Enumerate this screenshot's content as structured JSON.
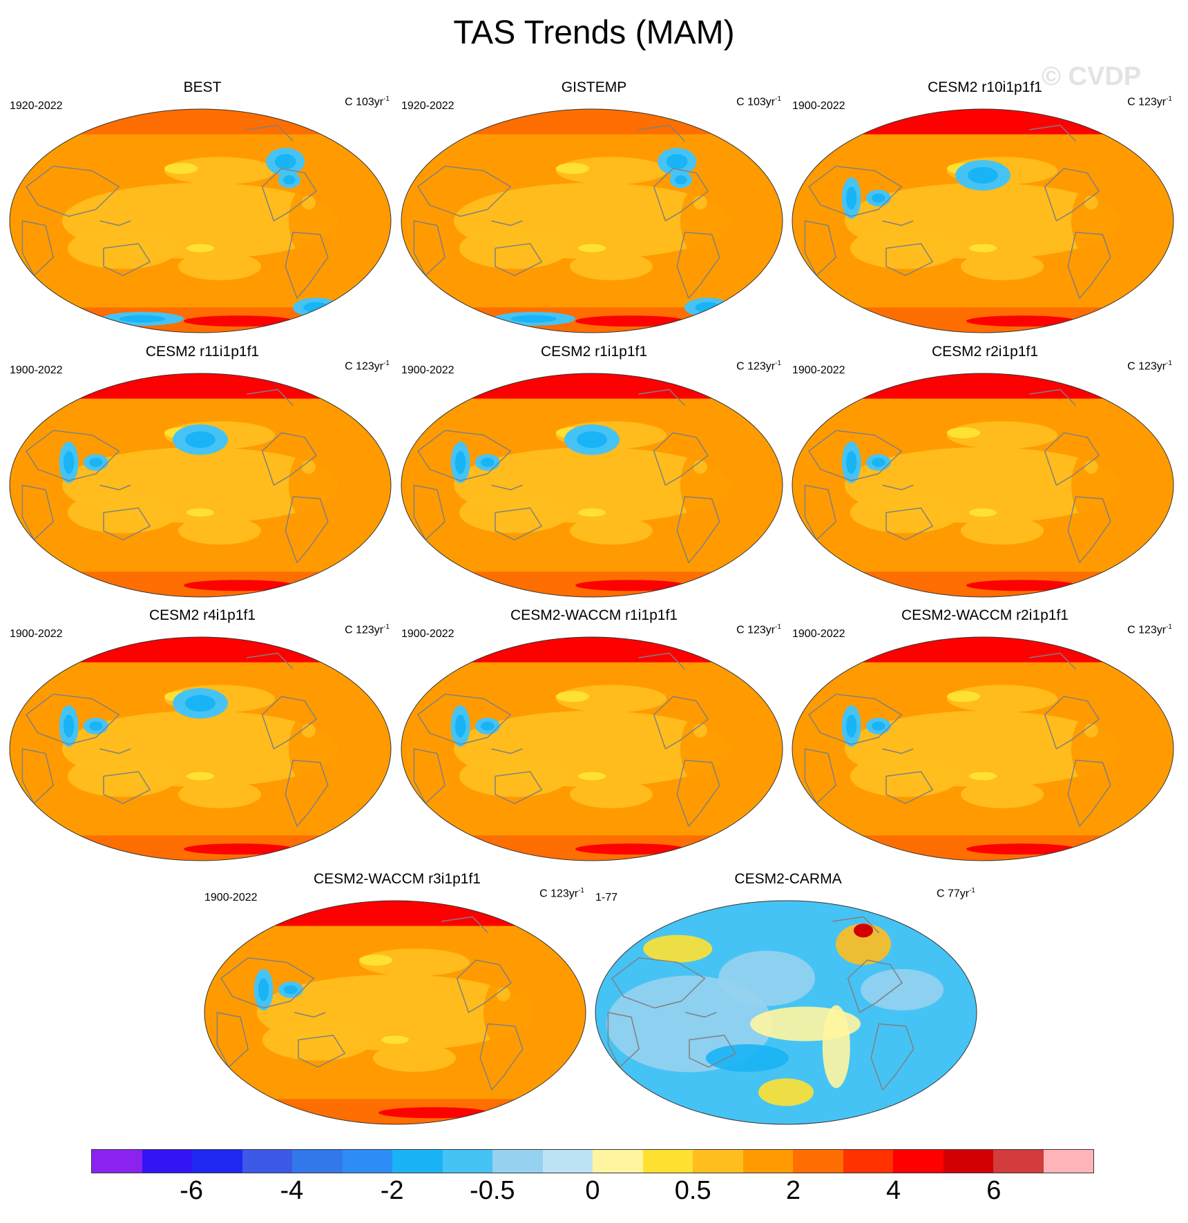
{
  "figure": {
    "title": "TAS Trends (MAM)",
    "watermark": "© CVDP"
  },
  "panels": [
    {
      "title": "BEST",
      "period": "1920-2022",
      "units": "C 103yr",
      "units_exp": "-1",
      "pattern": "obs",
      "cold_spots": [
        "north-atlantic",
        "antarctic"
      ]
    },
    {
      "title": "GISTEMP",
      "period": "1920-2022",
      "units": "C 103yr",
      "units_exp": "-1",
      "pattern": "obs",
      "cold_spots": [
        "north-atlantic",
        "antarctic"
      ]
    },
    {
      "title": "CESM2 r10i1p1f1",
      "period": "1900-2022",
      "units": "C 123yr",
      "units_exp": "-1",
      "pattern": "model",
      "cold_spots": [
        "north-pacific",
        "south-asia"
      ]
    },
    {
      "title": "CESM2 r11i1p1f1",
      "period": "1900-2022",
      "units": "C 123yr",
      "units_exp": "-1",
      "pattern": "model",
      "cold_spots": [
        "north-pacific",
        "south-asia"
      ]
    },
    {
      "title": "CESM2 r1i1p1f1",
      "period": "1900-2022",
      "units": "C 123yr",
      "units_exp": "-1",
      "pattern": "model",
      "cold_spots": [
        "north-pacific",
        "south-asia"
      ]
    },
    {
      "title": "CESM2 r2i1p1f1",
      "period": "1900-2022",
      "units": "C 123yr",
      "units_exp": "-1",
      "pattern": "model",
      "cold_spots": [
        "south-asia"
      ]
    },
    {
      "title": "CESM2 r4i1p1f1",
      "period": "1900-2022",
      "units": "C 123yr",
      "units_exp": "-1",
      "pattern": "model",
      "cold_spots": [
        "north-pacific",
        "south-asia"
      ]
    },
    {
      "title": "CESM2-WACCM r1i1p1f1",
      "period": "1900-2022",
      "units": "C 123yr",
      "units_exp": "-1",
      "pattern": "model",
      "cold_spots": [
        "south-asia"
      ]
    },
    {
      "title": "CESM2-WACCM r2i1p1f1",
      "period": "1900-2022",
      "units": "C 123yr",
      "units_exp": "-1",
      "pattern": "model",
      "cold_spots": [
        "south-asia"
      ]
    },
    {
      "title": "CESM2-WACCM r3i1p1f1",
      "period": "1900-2022",
      "units": "C 123yr",
      "units_exp": "-1",
      "pattern": "model",
      "cold_spots": [
        "south-asia"
      ]
    },
    {
      "title": "CESM2-CARMA",
      "period": "1-77",
      "units": "C 77yr",
      "units_exp": "-1",
      "pattern": "carma",
      "cold_spots": []
    }
  ],
  "colorbar": {
    "colors": [
      "#8b22f0",
      "#3214f5",
      "#1e28f0",
      "#3c5ae6",
      "#3278eb",
      "#2d8cf5",
      "#19b4f5",
      "#46c3f5",
      "#96d2f0",
      "#bde3f5",
      "#fff5a0",
      "#ffe132",
      "#ffbe1e",
      "#ff9b00",
      "#ff6e00",
      "#ff3200",
      "#ff0000",
      "#d20000",
      "#d23c3c",
      "#ffb4b9"
    ],
    "labels": [
      {
        "text": "-6",
        "boundary": 2
      },
      {
        "text": "-4",
        "boundary": 4
      },
      {
        "text": "-2",
        "boundary": 6
      },
      {
        "text": "-0.5",
        "boundary": 8
      },
      {
        "text": "0",
        "boundary": 10
      },
      {
        "text": "0.5",
        "boundary": 12
      },
      {
        "text": "2",
        "boundary": 14
      },
      {
        "text": "4",
        "boundary": 16
      },
      {
        "text": "6",
        "boundary": 18
      }
    ]
  }
}
